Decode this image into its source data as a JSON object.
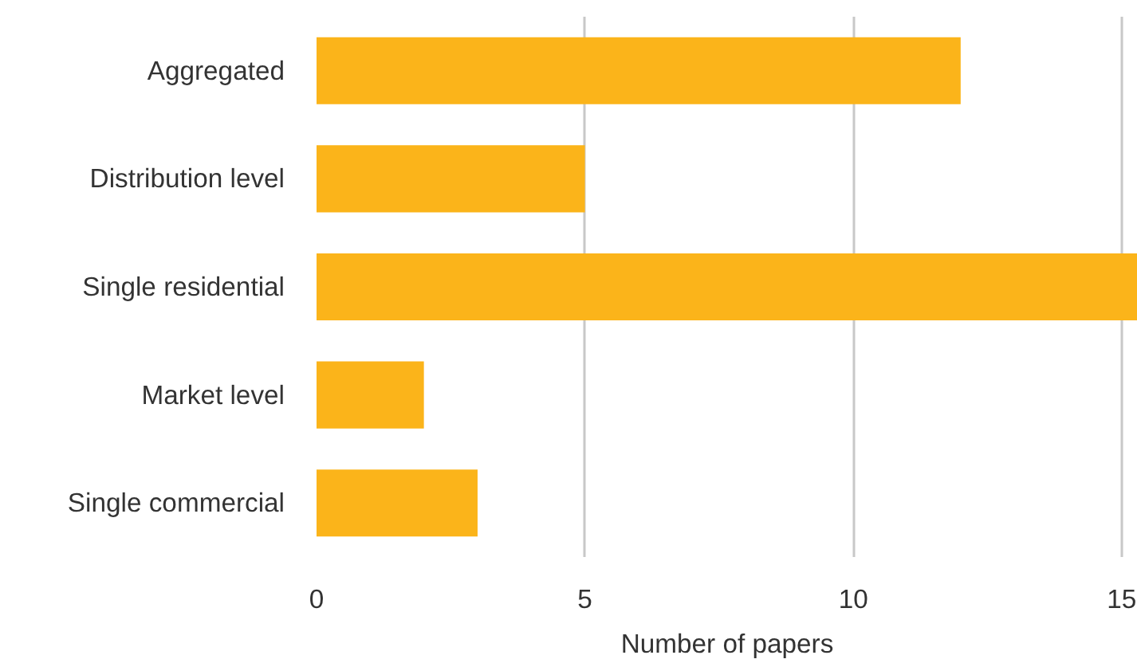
{
  "chart_data": {
    "type": "bar",
    "orientation": "horizontal",
    "xlabel": "Number of papers",
    "categories": [
      "Aggregated",
      "Distribution level",
      "Single residential",
      "Market level",
      "Single commercial"
    ],
    "values": [
      12,
      5,
      15.3,
      2,
      3
    ],
    "color": "#fbb41a",
    "xlim": [
      0,
      15.3
    ],
    "xticks": [
      0,
      5,
      10,
      15
    ],
    "grid": "x"
  }
}
